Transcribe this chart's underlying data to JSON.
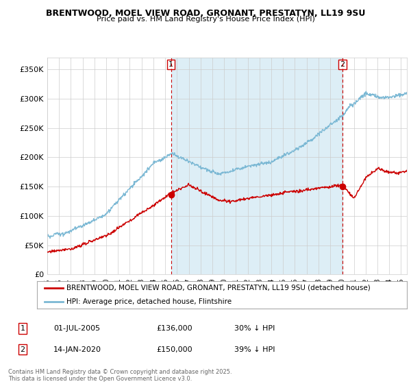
{
  "title1": "BRENTWOOD, MOEL VIEW ROAD, GRONANT, PRESTATYN, LL19 9SU",
  "title2": "Price paid vs. HM Land Registry's House Price Index (HPI)",
  "ylabel_ticks": [
    "£0",
    "£50K",
    "£100K",
    "£150K",
    "£200K",
    "£250K",
    "£300K",
    "£350K"
  ],
  "ytick_values": [
    0,
    50000,
    100000,
    150000,
    200000,
    250000,
    300000,
    350000
  ],
  "ylim": [
    0,
    370000
  ],
  "xlim_start": 1995.0,
  "xlim_end": 2025.5,
  "hpi_color": "#7bb8d4",
  "hpi_fill_color": "#ddeef6",
  "sold_color": "#cc0000",
  "marker1_x": 2005.5,
  "marker1_y": 136000,
  "marker2_x": 2020.04,
  "marker2_y": 150000,
  "legend_sold": "BRENTWOOD, MOEL VIEW ROAD, GRONANT, PRESTATYN, LL19 9SU (detached house)",
  "legend_hpi": "HPI: Average price, detached house, Flintshire",
  "table_row1": [
    "1",
    "01-JUL-2005",
    "£136,000",
    "30% ↓ HPI"
  ],
  "table_row2": [
    "2",
    "14-JAN-2020",
    "£150,000",
    "39% ↓ HPI"
  ],
  "footnote": "Contains HM Land Registry data © Crown copyright and database right 2025.\nThis data is licensed under the Open Government Licence v3.0.",
  "background_color": "#ffffff",
  "grid_color": "#cccccc"
}
